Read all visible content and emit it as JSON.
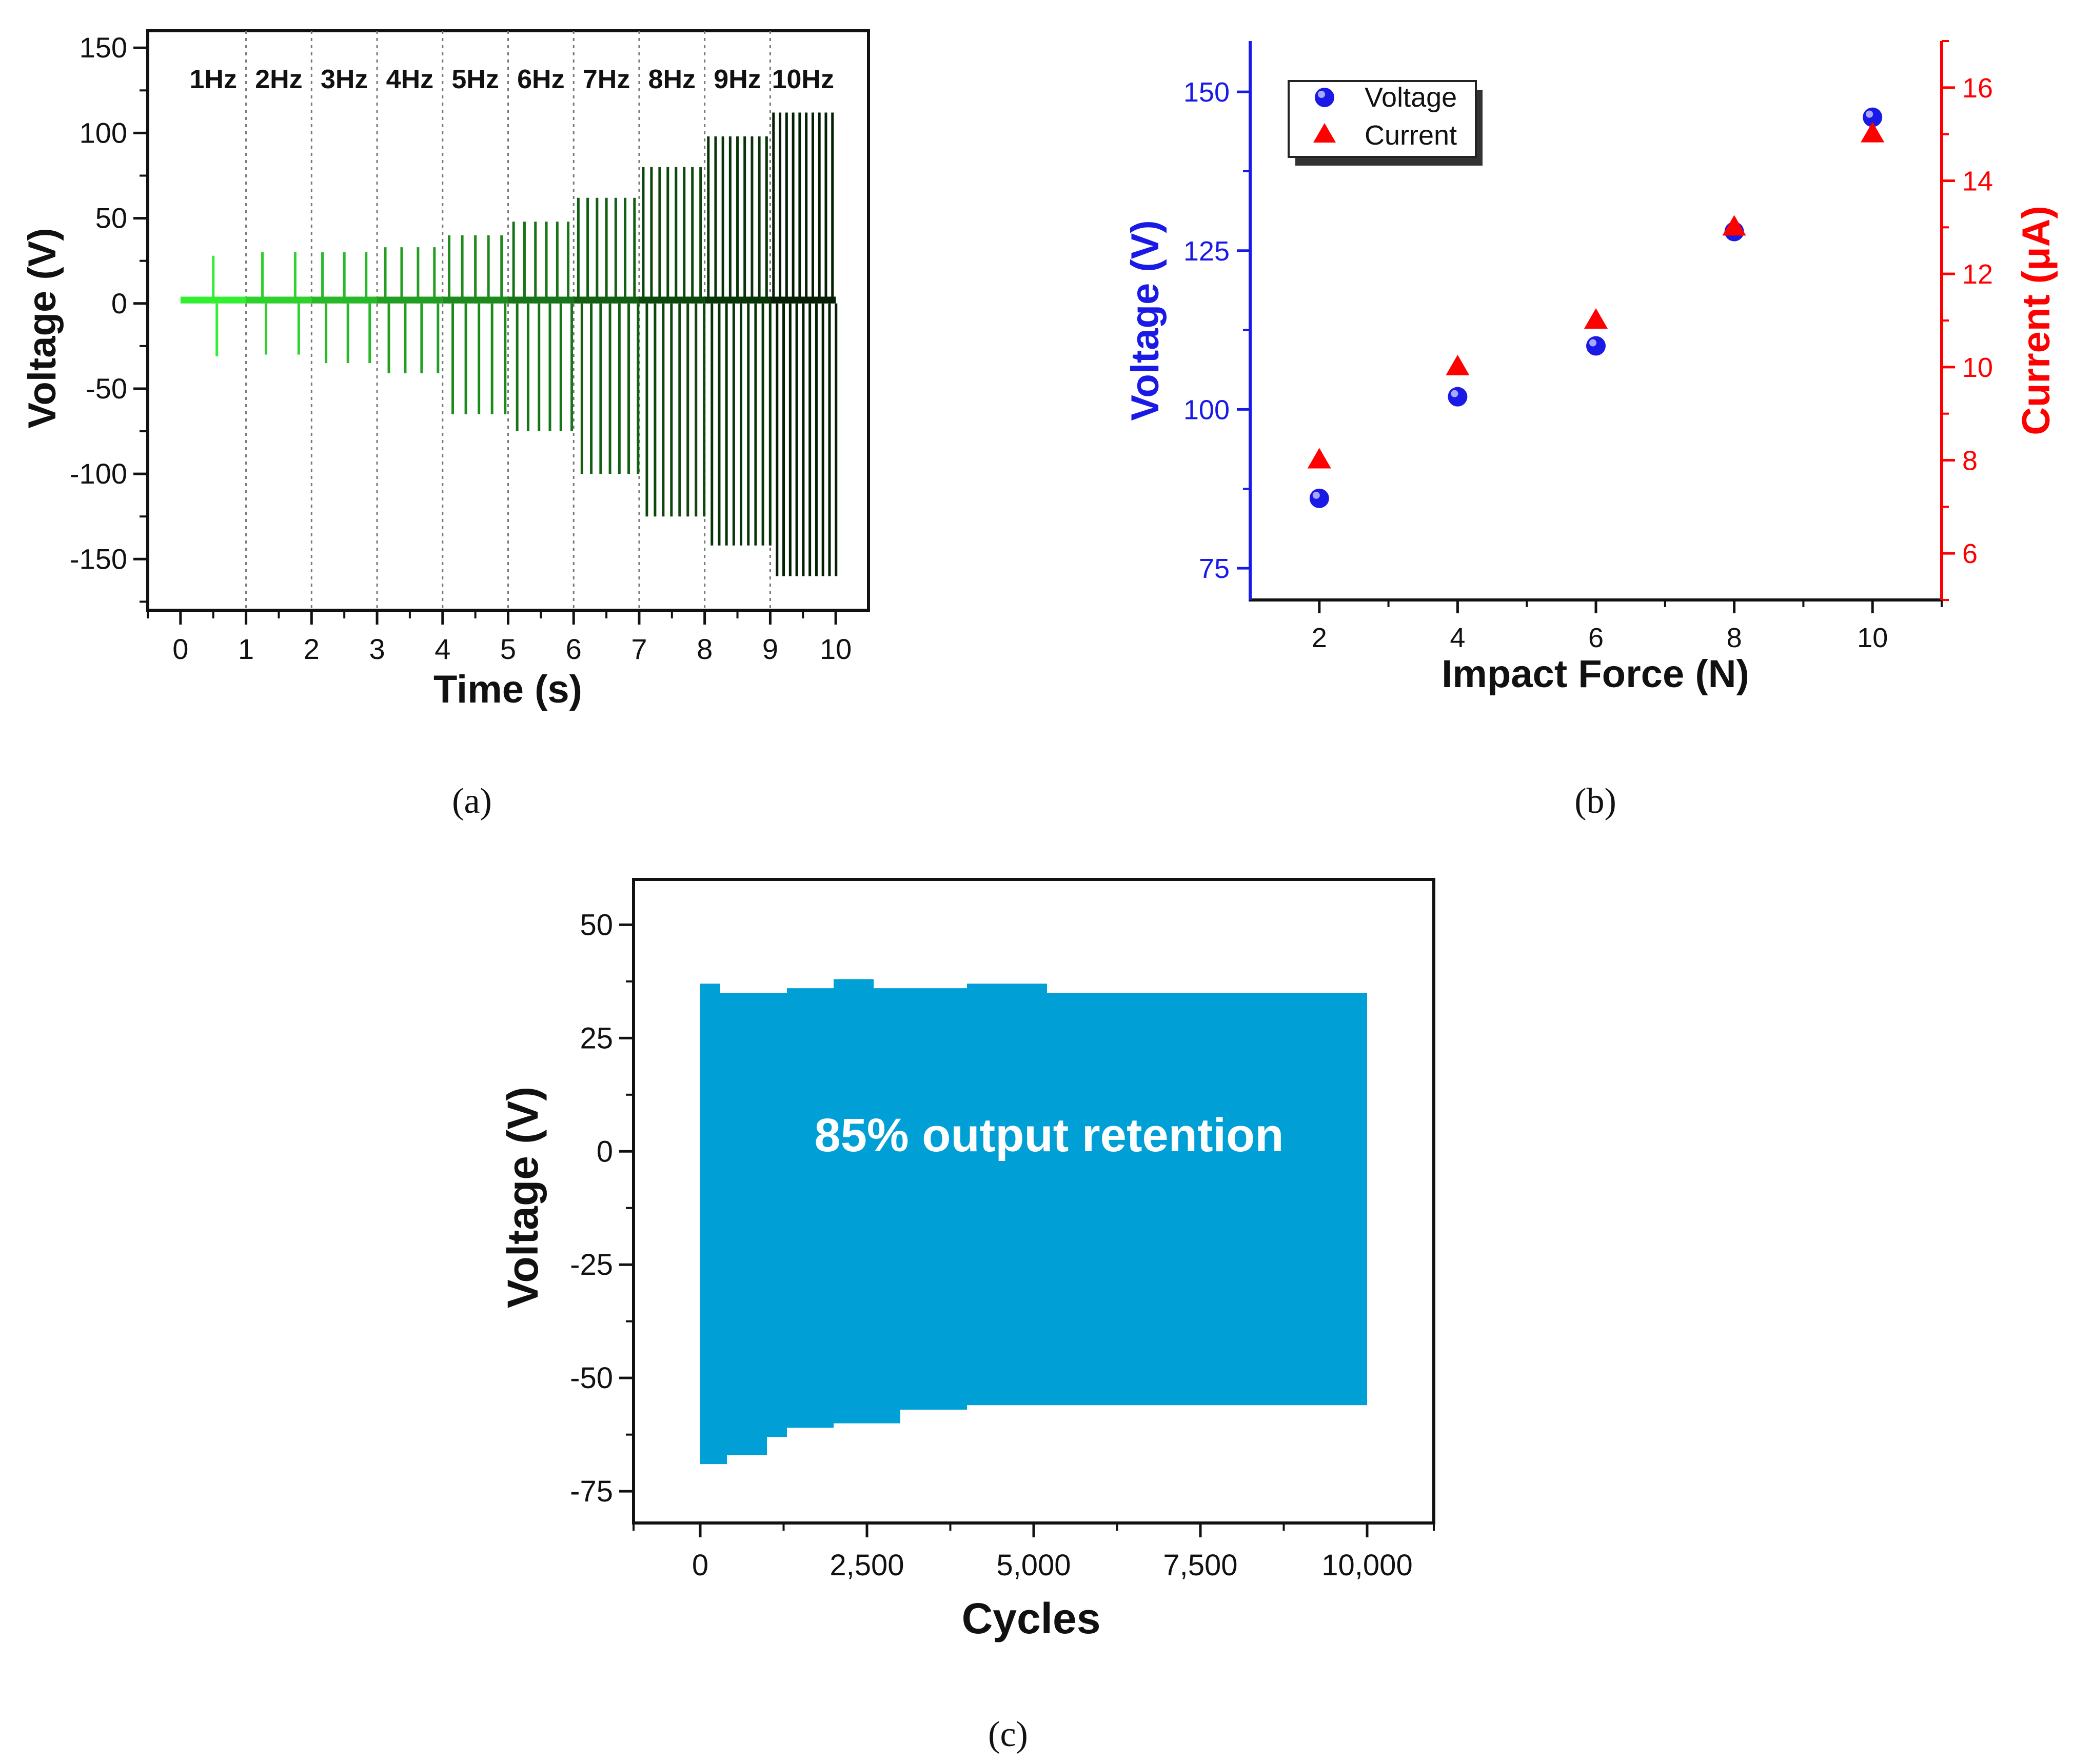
{
  "chart_data": [
    {
      "panel": "(a)",
      "type": "line",
      "xlabel": "Time (s)",
      "ylabel": "Voltage (V)",
      "xlim": [
        -0.5,
        10.5
      ],
      "ylim": [
        -180,
        160
      ],
      "xticks": [
        "0",
        "1",
        "2",
        "3",
        "4",
        "5",
        "6",
        "7",
        "8",
        "9",
        "10"
      ],
      "yticks": [
        "-150",
        "-100",
        "-50",
        "0",
        "50",
        "100",
        "150"
      ],
      "ytick_values": [
        -150,
        -100,
        -50,
        0,
        50,
        100,
        150
      ],
      "dividers": [
        1,
        2,
        3,
        4,
        5,
        6,
        7,
        8,
        9
      ],
      "colors": [
        "#33ee33",
        "#2ed12e",
        "#28b828",
        "#229f22",
        "#1e8a1e",
        "#187418",
        "#125e12",
        "#0c480c",
        "#083508",
        "#041f04"
      ],
      "segments": [
        {
          "label": "1Hz",
          "pulses": 1,
          "peak_pos": 28,
          "peak_neg": -31
        },
        {
          "label": "2Hz",
          "pulses": 2,
          "peak_pos": 30,
          "peak_neg": -30
        },
        {
          "label": "3Hz",
          "pulses": 3,
          "peak_pos": 30,
          "peak_neg": -35
        },
        {
          "label": "4Hz",
          "pulses": 4,
          "peak_pos": 33,
          "peak_neg": -41
        },
        {
          "label": "5Hz",
          "pulses": 5,
          "peak_pos": 40,
          "peak_neg": -65
        },
        {
          "label": "6Hz",
          "pulses": 6,
          "peak_pos": 48,
          "peak_neg": -75
        },
        {
          "label": "7Hz",
          "pulses": 7,
          "peak_pos": 62,
          "peak_neg": -100
        },
        {
          "label": "8Hz",
          "pulses": 8,
          "peak_pos": 80,
          "peak_neg": -125
        },
        {
          "label": "9Hz",
          "pulses": 9,
          "peak_pos": 98,
          "peak_neg": -142
        },
        {
          "label": "10Hz",
          "pulses": 10,
          "peak_pos": 112,
          "peak_neg": -160
        }
      ]
    },
    {
      "panel": "(b)",
      "type": "scatter",
      "xlabel": "Impact Force (N)",
      "ylabel_left": "Voltage (V)",
      "ylabel_right": "Current (μA)",
      "xlim": [
        1,
        11
      ],
      "ylim_left": [
        70,
        158
      ],
      "ylim_right": [
        5,
        17
      ],
      "xticks": [
        "2",
        "4",
        "6",
        "8",
        "10"
      ],
      "xtick_values": [
        2,
        4,
        6,
        8,
        10
      ],
      "yticks_left": [
        "75",
        "100",
        "125",
        "150"
      ],
      "ytick_values_left": [
        75,
        100,
        125,
        150
      ],
      "yticks_right": [
        "6",
        "8",
        "10",
        "12",
        "14",
        "16"
      ],
      "ytick_values_right": [
        6,
        8,
        10,
        12,
        14,
        16
      ],
      "legend": [
        "Voltage",
        "Current"
      ],
      "legend_position": "top-left",
      "series": [
        {
          "name": "Voltage",
          "axis": "left",
          "marker": "circle",
          "color": "#1a1ae6",
          "x": [
            2,
            4,
            6,
            8,
            10
          ],
          "values": [
            86,
            102,
            110,
            128,
            146
          ]
        },
        {
          "name": "Current",
          "axis": "right",
          "marker": "triangle",
          "color": "#ff0000",
          "x": [
            2,
            4,
            6,
            8,
            10
          ],
          "values": [
            8,
            10,
            11,
            13,
            15
          ]
        }
      ],
      "left_axis_color": "#1a1ae6",
      "right_axis_color": "#ff0000"
    },
    {
      "panel": "(c)",
      "type": "area",
      "xlabel": "Cycles",
      "ylabel": "Voltage (V)",
      "xlim": [
        -1000,
        11000
      ],
      "ylim": [
        -82,
        60
      ],
      "xticks": [
        "0",
        "2,500",
        "5,000",
        "7,500",
        "10,000"
      ],
      "xtick_values": [
        0,
        2500,
        5000,
        7500,
        10000
      ],
      "yticks": [
        "-75",
        "-50",
        "-25",
        "0",
        "25",
        "50"
      ],
      "ytick_values": [
        -75,
        -50,
        -25,
        0,
        25,
        50
      ],
      "color": "#00a0d6",
      "annotation": "85% output retention",
      "upper_envelope": {
        "x": [
          0,
          300,
          1300,
          2000,
          2600,
          4000,
          5200,
          10000
        ],
        "values": [
          37,
          35,
          36,
          38,
          36,
          37,
          35,
          35
        ]
      },
      "lower_envelope": {
        "x": [
          0,
          400,
          1000,
          1300,
          2000,
          3000,
          4000,
          10000
        ],
        "values": [
          -69,
          -67,
          -63,
          -61,
          -60,
          -57,
          -56,
          -55
        ]
      }
    }
  ],
  "captions": [
    "(a)",
    "(b)",
    "(c)"
  ]
}
